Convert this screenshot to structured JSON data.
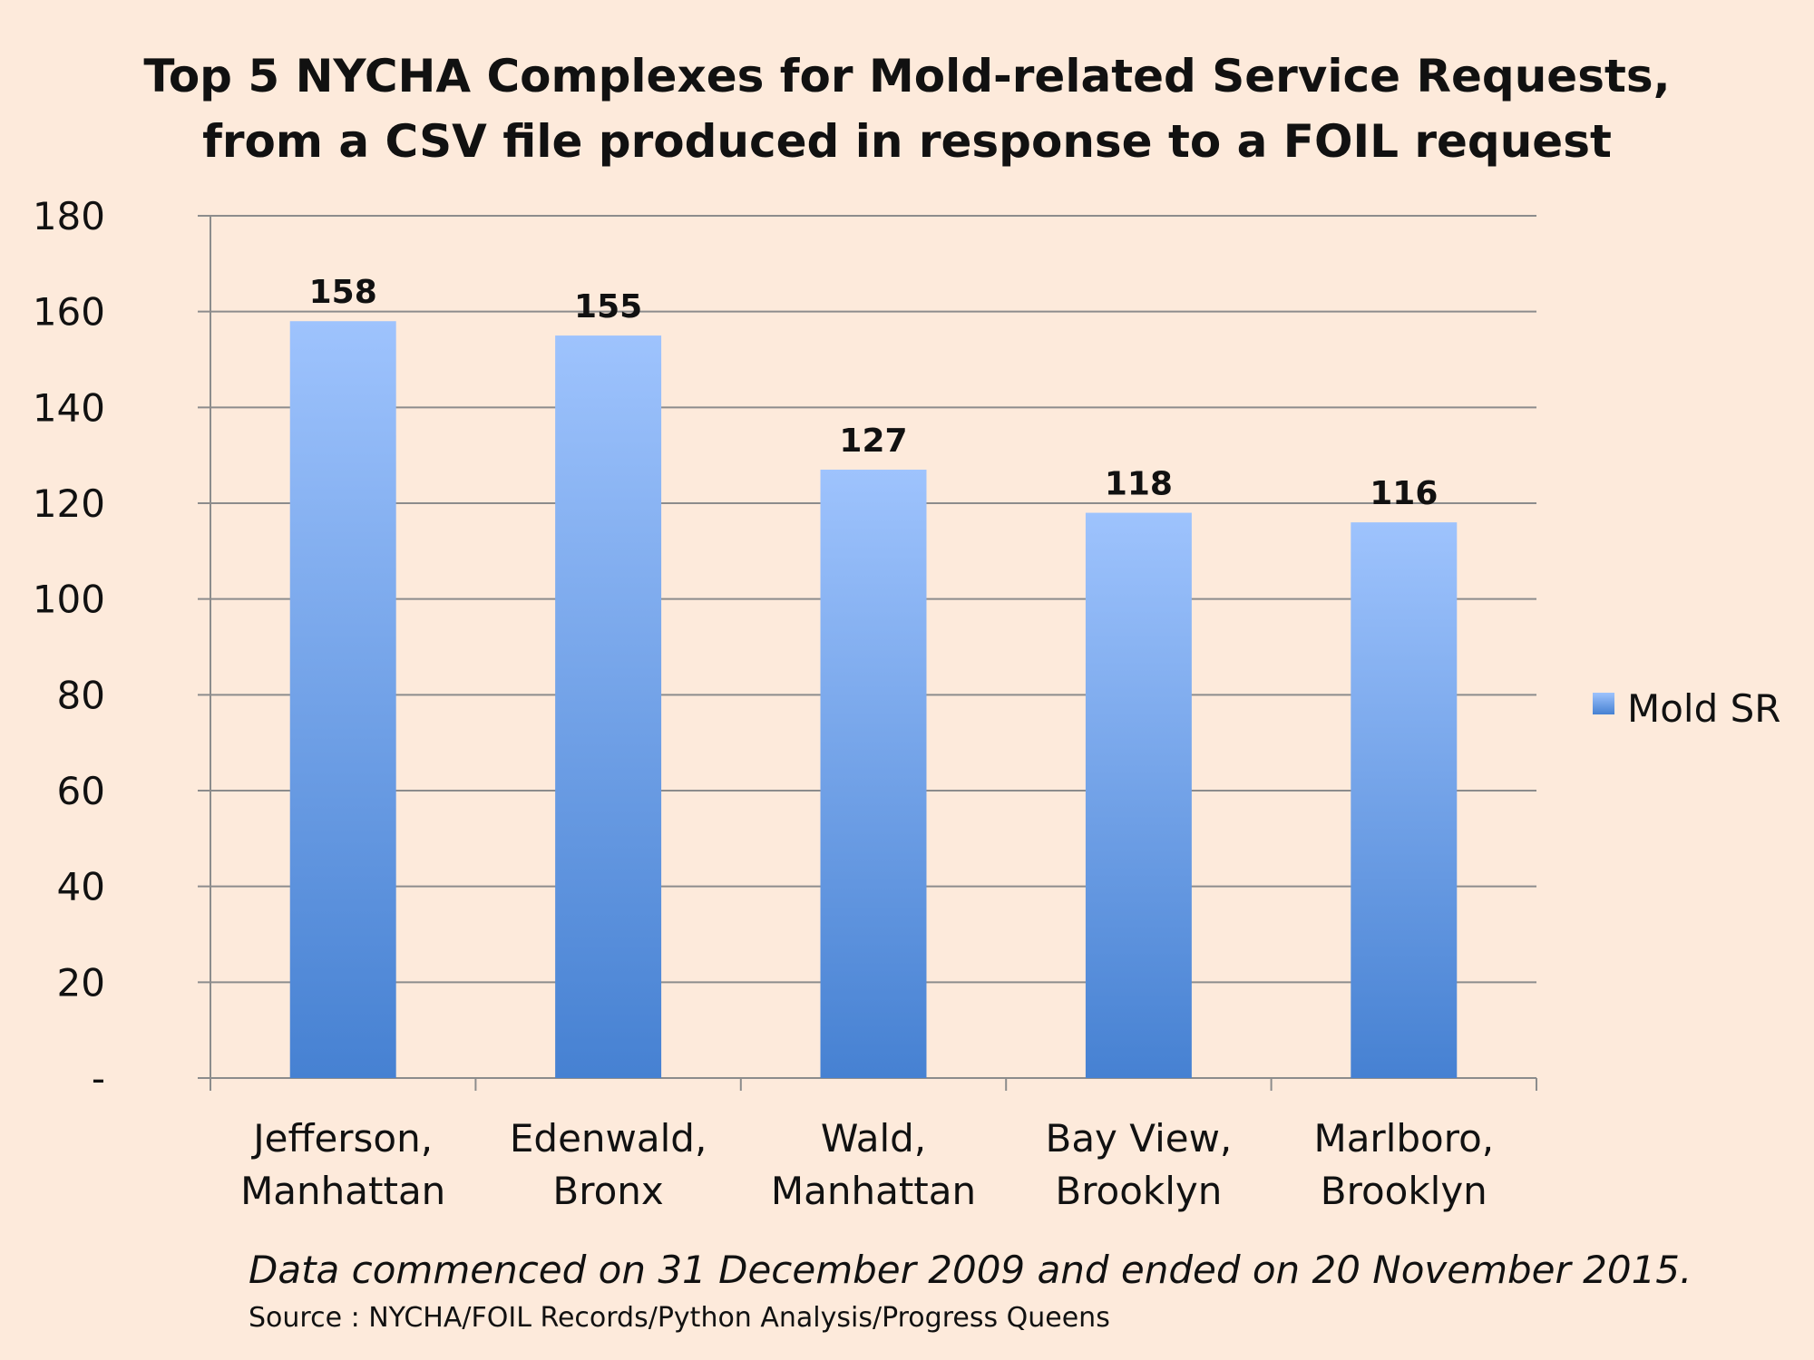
{
  "chart_data": {
    "type": "bar",
    "title": "Top 5 NYCHA Complexes for Mold-related Service Requests,\nfrom a CSV file produced in response to a FOIL request",
    "categories": [
      [
        "Jefferson,",
        "Manhattan"
      ],
      [
        "Edenwald,",
        "Bronx"
      ],
      [
        "Wald,",
        "Manhattan"
      ],
      [
        "Bay View,",
        "Brooklyn"
      ],
      [
        "Marlboro,",
        "Brooklyn"
      ]
    ],
    "series": [
      {
        "name": "Mold SR",
        "values": [
          158,
          155,
          127,
          118,
          116
        ]
      }
    ],
    "data_labels": [
      "158",
      "155",
      "127",
      "118",
      "116"
    ],
    "ylim": [
      0,
      180
    ],
    "y_ticks": [
      0,
      20,
      40,
      60,
      80,
      100,
      120,
      140,
      160,
      180
    ],
    "y_tick_labels": [
      "-",
      "20",
      "40",
      "60",
      "80",
      "100",
      "120",
      "140",
      "160",
      "180"
    ],
    "xlabel": "",
    "ylabel": "",
    "grid": true,
    "legend_position": "right",
    "colors": {
      "bar_top": "#9ec3fd",
      "bar_bottom": "#4681d2",
      "grid": "#8c8c8c",
      "background": "#fdeadb"
    }
  },
  "footnote": "Data commenced on 31 December 2009 and ended on 20 November 2015.",
  "source": "Source : NYCHA/FOIL Records/Python Analysis/Progress Queens"
}
